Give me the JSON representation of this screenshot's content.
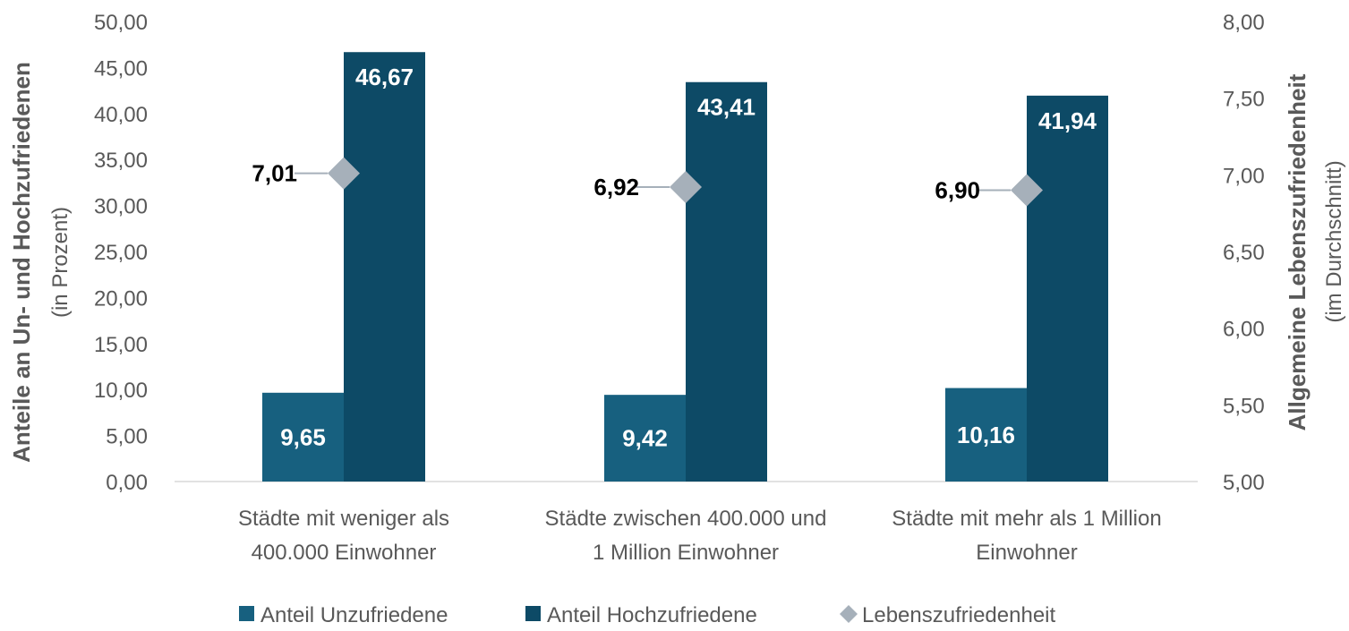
{
  "chart_data": {
    "type": "bar",
    "categories": [
      [
        "Städte mit weniger als",
        "400.000 Einwohner"
      ],
      [
        "Städte zwischen 400.000 und",
        "1 Million Einwohner"
      ],
      [
        "Städte mit mehr als 1 Million",
        "Einwohner"
      ]
    ],
    "series": [
      {
        "name": "Anteil Unzufriedene",
        "type": "bar",
        "axis": "left",
        "values": [
          9.65,
          9.42,
          10.16
        ],
        "labels": [
          "9,65",
          "9,42",
          "10,16"
        ],
        "color": "#17607f"
      },
      {
        "name": "Anteil Hochzufriedene",
        "type": "bar",
        "axis": "left",
        "values": [
          46.67,
          43.41,
          41.94
        ],
        "labels": [
          "46,67",
          "43,41",
          "41,94"
        ],
        "color": "#0d4a66"
      },
      {
        "name": "Lebenszufriedenheit",
        "type": "scatter",
        "marker": "diamond",
        "axis": "right",
        "values": [
          7.01,
          6.92,
          6.9
        ],
        "labels": [
          "7,01",
          "6,92",
          "6,90"
        ],
        "color": "#a6b0ba"
      }
    ],
    "y_left": {
      "title": "Anteile an Un- und Hochzufriedenen",
      "subtitle": "(in Prozent)",
      "range": [
        0,
        50
      ],
      "ticks": [
        "0,00",
        "5,00",
        "10,00",
        "15,00",
        "20,00",
        "25,00",
        "30,00",
        "35,00",
        "40,00",
        "45,00",
        "50,00"
      ]
    },
    "y_right": {
      "title": "Allgemeine Lebenszufriedenheit",
      "subtitle": "(im Durchschnitt)",
      "range": [
        5,
        8
      ],
      "ticks": [
        "5,00",
        "5,50",
        "6,00",
        "6,50",
        "7,00",
        "7,50",
        "8,00"
      ]
    },
    "grid": false,
    "legend_position": "bottom"
  }
}
